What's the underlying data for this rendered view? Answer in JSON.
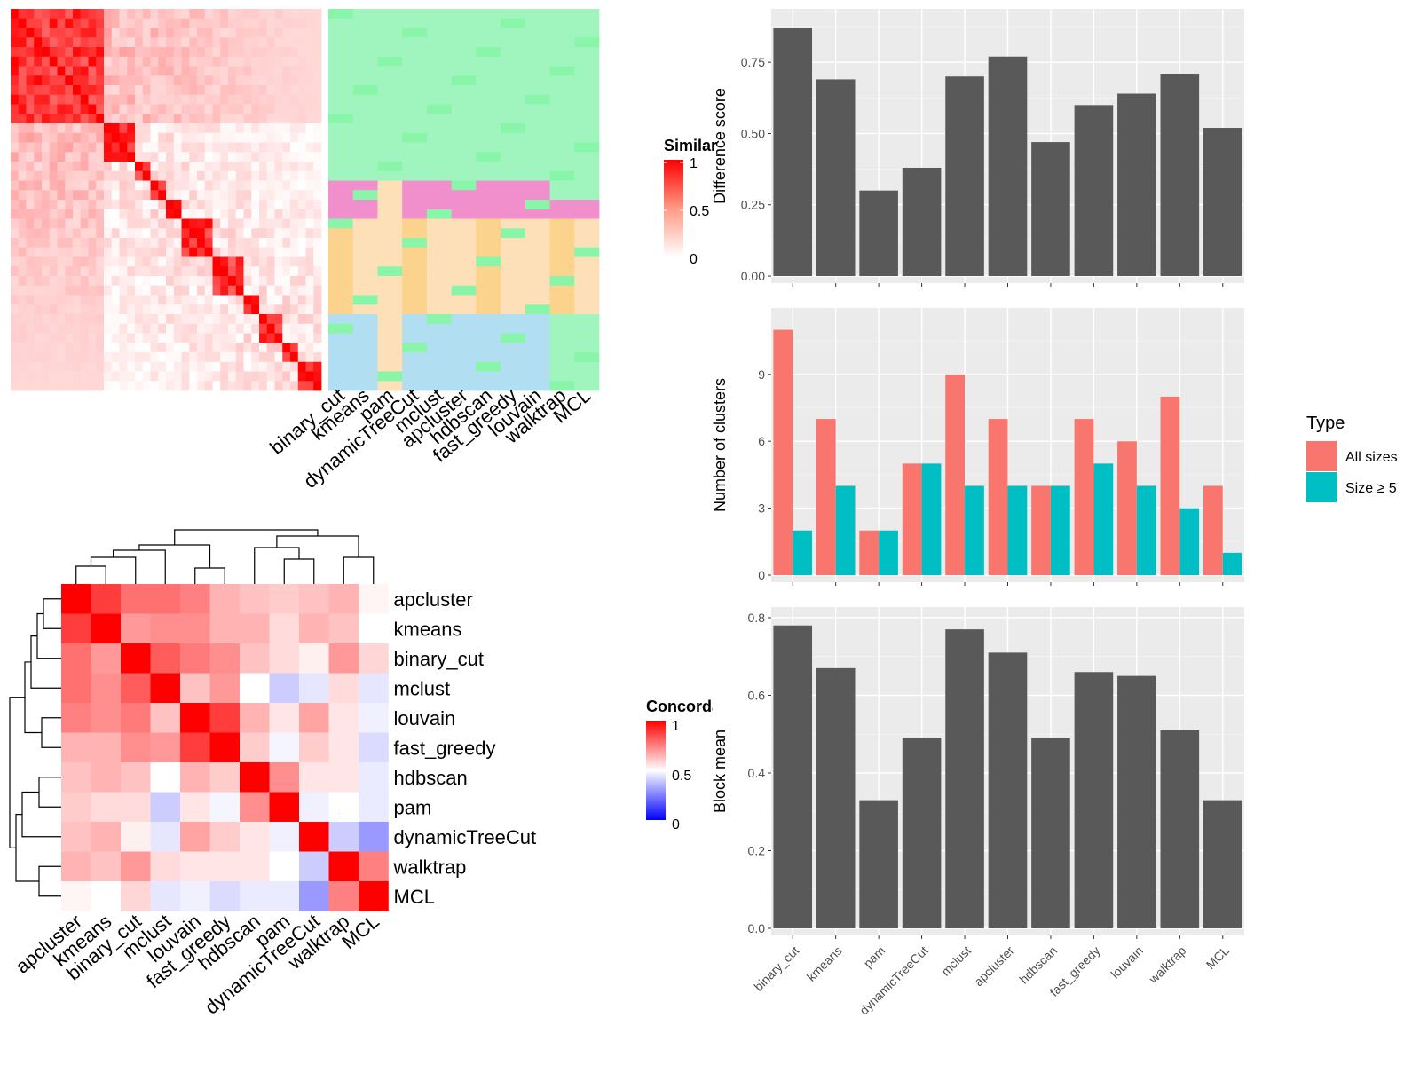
{
  "chart_data": [
    {
      "type": "heatmap",
      "name": "cell-similarity-heatmap",
      "legend_title": "Similarity",
      "legend_ticks": [
        "1",
        "0.5",
        "0"
      ],
      "column_labels": [
        "binary_cut",
        "kmeans",
        "pam",
        "dynamicTreeCut",
        "mclust",
        "apcluster",
        "hdbscan",
        "fast_greedy",
        "louvain",
        "walktrap",
        "MCL"
      ],
      "colors": {
        "high": "#ff0000",
        "low": "#ffffff"
      }
    },
    {
      "type": "heatmap",
      "name": "concordance-heatmap",
      "legend_title": "Concordance",
      "legend_ticks": [
        "1",
        "0.5",
        "0"
      ],
      "labels": [
        "apcluster",
        "kmeans",
        "binary_cut",
        "mclust",
        "louvain",
        "fast_greedy",
        "hdbscan",
        "pam",
        "dynamicTreeCut",
        "walktrap",
        "MCL"
      ],
      "values": [
        [
          1.0,
          0.88,
          0.78,
          0.78,
          0.75,
          0.65,
          0.62,
          0.6,
          0.62,
          0.65,
          0.52
        ],
        [
          0.88,
          1.0,
          0.7,
          0.72,
          0.72,
          0.65,
          0.65,
          0.57,
          0.65,
          0.62,
          0.5
        ],
        [
          0.78,
          0.7,
          1.0,
          0.82,
          0.76,
          0.72,
          0.62,
          0.57,
          0.53,
          0.7,
          0.58
        ],
        [
          0.78,
          0.72,
          0.82,
          1.0,
          0.62,
          0.7,
          0.5,
          0.4,
          0.45,
          0.57,
          0.45
        ],
        [
          0.75,
          0.72,
          0.76,
          0.62,
          1.0,
          0.88,
          0.65,
          0.55,
          0.68,
          0.55,
          0.47
        ],
        [
          0.65,
          0.65,
          0.72,
          0.7,
          0.88,
          1.0,
          0.6,
          0.48,
          0.6,
          0.55,
          0.43
        ],
        [
          0.62,
          0.65,
          0.62,
          0.5,
          0.65,
          0.6,
          1.0,
          0.72,
          0.55,
          0.55,
          0.46
        ],
        [
          0.6,
          0.57,
          0.57,
          0.4,
          0.55,
          0.48,
          0.72,
          1.0,
          0.47,
          0.5,
          0.46
        ],
        [
          0.62,
          0.65,
          0.53,
          0.45,
          0.68,
          0.6,
          0.55,
          0.47,
          1.0,
          0.4,
          0.3
        ],
        [
          0.65,
          0.62,
          0.7,
          0.57,
          0.55,
          0.55,
          0.55,
          0.5,
          0.4,
          1.0,
          0.75
        ],
        [
          0.52,
          0.5,
          0.58,
          0.45,
          0.47,
          0.43,
          0.46,
          0.46,
          0.3,
          0.75,
          1.0
        ]
      ],
      "colors": {
        "high": "#ff0000",
        "mid": "#ffffff",
        "low": "#0000ff"
      }
    },
    {
      "type": "bar",
      "name": "difference-score",
      "ylabel": "Difference score",
      "categories": [
        "binary_cut",
        "kmeans",
        "pam",
        "dynamicTreeCut",
        "mclust",
        "apcluster",
        "hdbscan",
        "fast_greedy",
        "louvain",
        "walktrap",
        "MCL"
      ],
      "values": [
        0.87,
        0.69,
        0.3,
        0.38,
        0.7,
        0.77,
        0.47,
        0.6,
        0.64,
        0.71,
        0.52
      ],
      "ylim": [
        0,
        0.9
      ],
      "yticks": [
        "0.00",
        "0.25",
        "0.50",
        "0.75"
      ],
      "bar_color": "#595959"
    },
    {
      "type": "bar",
      "name": "number-of-clusters",
      "ylabel": "Number of clusters",
      "categories": [
        "binary_cut",
        "kmeans",
        "pam",
        "dynamicTreeCut",
        "mclust",
        "apcluster",
        "hdbscan",
        "fast_greedy",
        "louvain",
        "walktrap",
        "MCL"
      ],
      "series": [
        {
          "name": "All sizes",
          "color": "#f8766d",
          "values": [
            11,
            7,
            2,
            5,
            9,
            7,
            4,
            7,
            6,
            8,
            4
          ]
        },
        {
          "name": "Size ≥ 5",
          "color": "#00bfc4",
          "values": [
            2,
            4,
            2,
            5,
            4,
            4,
            4,
            5,
            4,
            3,
            1
          ]
        }
      ],
      "ylim": [
        0,
        11.5
      ],
      "yticks": [
        "0",
        "3",
        "6",
        "9"
      ],
      "legend_title": "Type",
      "legend_position": "right"
    },
    {
      "type": "bar",
      "name": "block-mean",
      "ylabel": "Block mean",
      "categories": [
        "binary_cut",
        "kmeans",
        "pam",
        "dynamicTreeCut",
        "mclust",
        "apcluster",
        "hdbscan",
        "fast_greedy",
        "louvain",
        "walktrap",
        "MCL"
      ],
      "values": [
        0.78,
        0.67,
        0.33,
        0.49,
        0.77,
        0.71,
        0.49,
        0.66,
        0.65,
        0.51,
        0.33
      ],
      "ylim": [
        0,
        0.8
      ],
      "yticks": [
        "0.0",
        "0.2",
        "0.4",
        "0.6",
        "0.8"
      ],
      "bar_color": "#595959"
    }
  ]
}
